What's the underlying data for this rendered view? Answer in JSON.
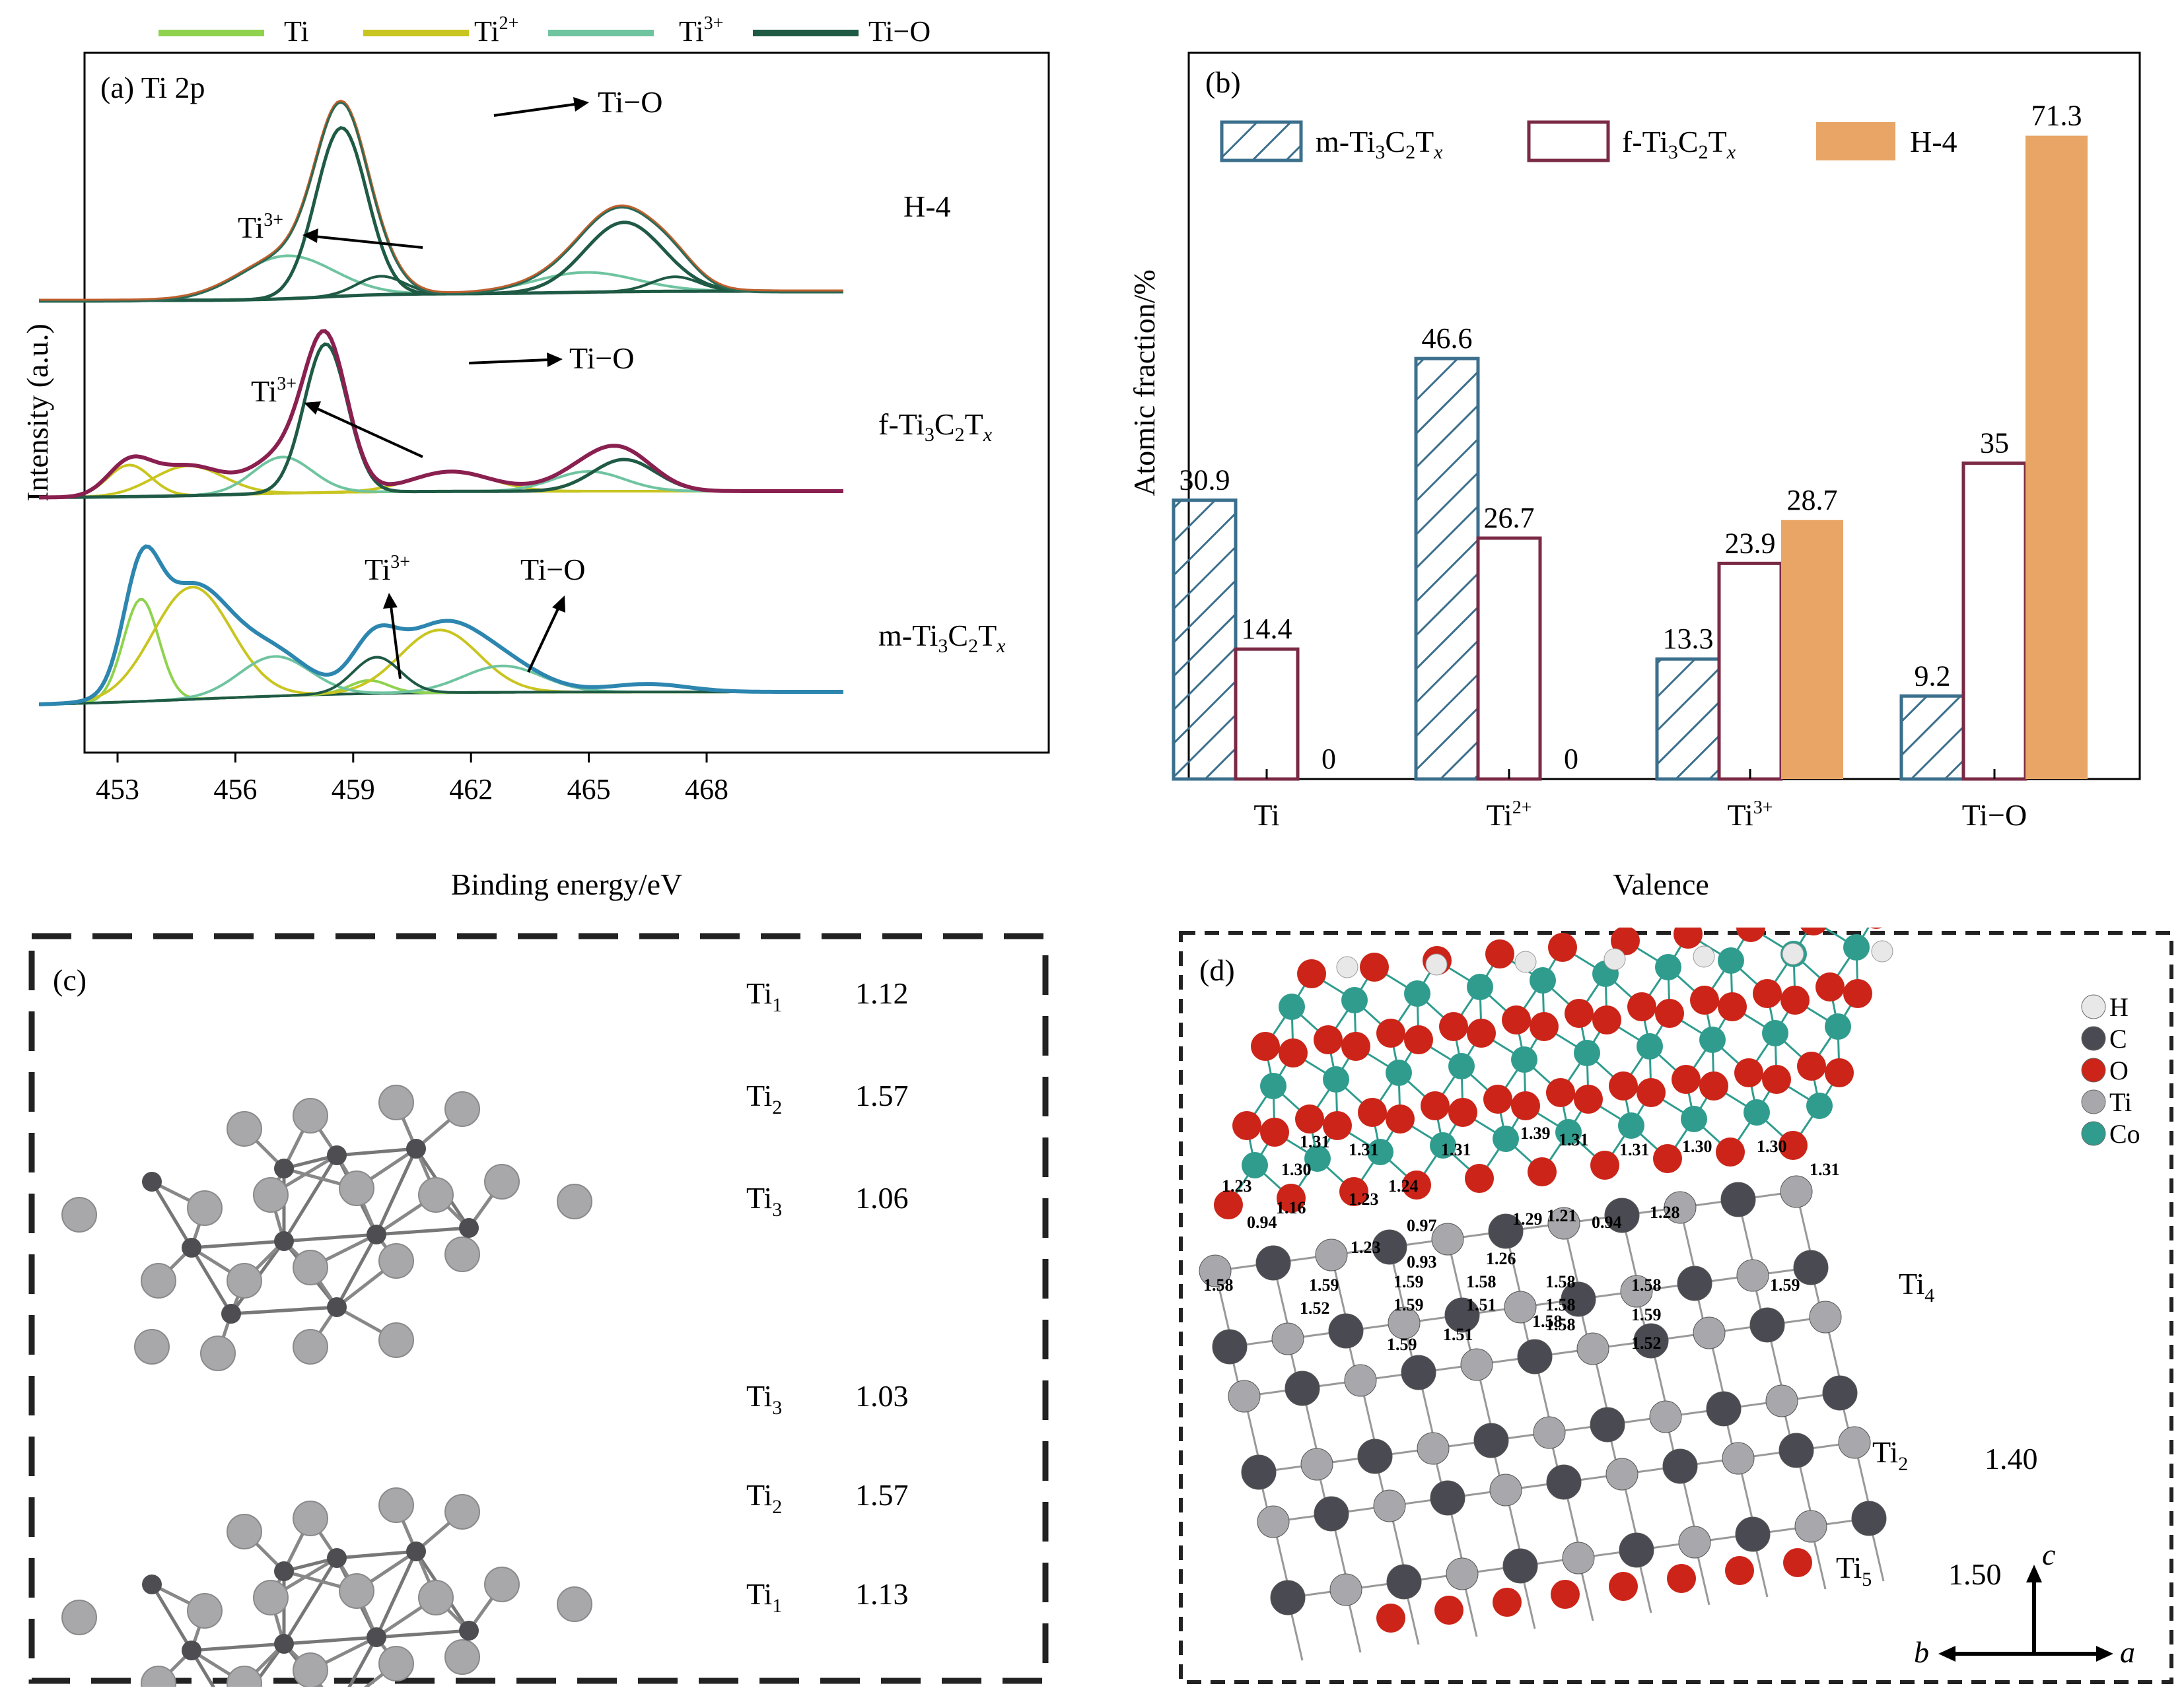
{
  "legend_a": [
    {
      "label": "Ti",
      "sup": "",
      "color": "#8fd24e"
    },
    {
      "label": "Ti",
      "sup": "2+",
      "color": "#c9c520"
    },
    {
      "label": "Ti",
      "sup": "3+",
      "color": "#6fc4a0"
    },
    {
      "label": "Ti−O",
      "sup": "",
      "color": "#1f5a45"
    }
  ],
  "panel_a": {
    "tag": "(a) Ti 2p",
    "ylabel": "Intensity (a.u.)",
    "xlabel": "Binding energy/eV",
    "xticks": [
      "453",
      "456",
      "459",
      "462",
      "465",
      "468"
    ],
    "samples": [
      {
        "name": "H-4",
        "sub": "",
        "annotations": {
          "ti3": "Ti",
          "ti3_sup": "3+",
          "tio": "Ti−O"
        }
      },
      {
        "name": "f-Ti",
        "sub": "3",
        "annotations": {
          "ti3": "Ti",
          "ti3_sup": "3+",
          "tio": "Ti−O"
        }
      },
      {
        "name": "m-Ti",
        "sub": "3",
        "annotations": {
          "ti3": "Ti",
          "ti3_sup": "3+",
          "tio": "Ti−O"
        }
      }
    ],
    "sample_labels": {
      "h4": "H-4",
      "f_prefix": "f-Ti",
      "f_c": "C",
      "f_t": "T",
      "f_x": "x",
      "m_prefix": "m-Ti",
      "m_c": "C",
      "m_t": "T",
      "m_x": "x",
      "sub3": "3",
      "sub2": "2"
    }
  },
  "chart_data": {
    "type": "bar",
    "tag": "(b)",
    "xlabel": "Valence",
    "ylabel": "Atomic fraction/%",
    "categories": [
      "Ti",
      "Ti2+",
      "Ti3+",
      "Ti−O"
    ],
    "category_display": [
      {
        "base": "Ti",
        "sup": ""
      },
      {
        "base": "Ti",
        "sup": "2+"
      },
      {
        "base": "Ti",
        "sup": "3+"
      },
      {
        "base": "Ti−O",
        "sup": ""
      }
    ],
    "ylim": [
      0,
      75
    ],
    "series": [
      {
        "name": "m-Ti3C2Tx",
        "values": [
          30.9,
          46.6,
          13.3,
          9.2
        ],
        "labels": [
          "30.9",
          "46.6",
          "13.3",
          "9.2"
        ],
        "style": "hatched",
        "color": "#3b6f8c"
      },
      {
        "name": "f-Ti3C2Tx",
        "values": [
          14.4,
          26.7,
          23.9,
          35
        ],
        "labels": [
          "14.4",
          "26.7",
          "23.9",
          "35"
        ],
        "style": "outline",
        "color": "#7a2a45"
      },
      {
        "name": "H-4",
        "values": [
          0,
          0,
          28.7,
          71.3
        ],
        "labels": [
          "0",
          "0",
          "28.7",
          "71.3"
        ],
        "style": "filled",
        "color": "#e8a565"
      }
    ]
  },
  "panel_c": {
    "tag": "(c)",
    "rows": [
      {
        "ti": "Ti",
        "sub": "1",
        "value": "1.12"
      },
      {
        "ti": "Ti",
        "sub": "2",
        "value": "1.57"
      },
      {
        "ti": "Ti",
        "sub": "3",
        "value": "1.06"
      },
      {
        "ti": "Ti",
        "sub": "3",
        "value": "1.03"
      },
      {
        "ti": "Ti",
        "sub": "2",
        "value": "1.57"
      },
      {
        "ti": "Ti",
        "sub": "1",
        "value": "1.13"
      }
    ]
  },
  "panel_d": {
    "tag": "(d)",
    "legend": [
      {
        "label": "H",
        "color": "#e8e8e8"
      },
      {
        "label": "C",
        "color": "#4a4a52"
      },
      {
        "label": "O",
        "color": "#cc2418"
      },
      {
        "label": "Ti",
        "color": "#a8a8ac"
      },
      {
        "label": "Co",
        "color": "#2f9c8e"
      }
    ],
    "charges_co_o": [
      "1.31",
      "1.30",
      "1.31",
      "1.31",
      "1.39",
      "1.31",
      "1.31",
      "1.30",
      "1.30",
      "1.31",
      "1.23",
      "1.16",
      "1.23",
      "1.24",
      "1.21",
      "1.28",
      "0.94",
      "0.97",
      "1.29",
      "0.94",
      "1.23",
      "0.93",
      "1.26"
    ],
    "charges_ti": [
      "1.58",
      "1.59",
      "1.59",
      "1.58",
      "1.58",
      "1.58",
      "1.59",
      "1.59",
      "1.51",
      "1.58",
      "1.58",
      "1.52",
      "1.58",
      "1.59",
      "1.51",
      "1.59",
      "1.52"
    ],
    "side_labels": [
      {
        "ti": "Ti",
        "sub": "4",
        "value": ""
      },
      {
        "ti": "Ti",
        "sub": "2",
        "value": "1.40"
      },
      {
        "ti": "Ti",
        "sub": "5",
        "value": "1.50"
      }
    ],
    "axes": {
      "c": "c",
      "a": "a",
      "b": "b"
    }
  }
}
